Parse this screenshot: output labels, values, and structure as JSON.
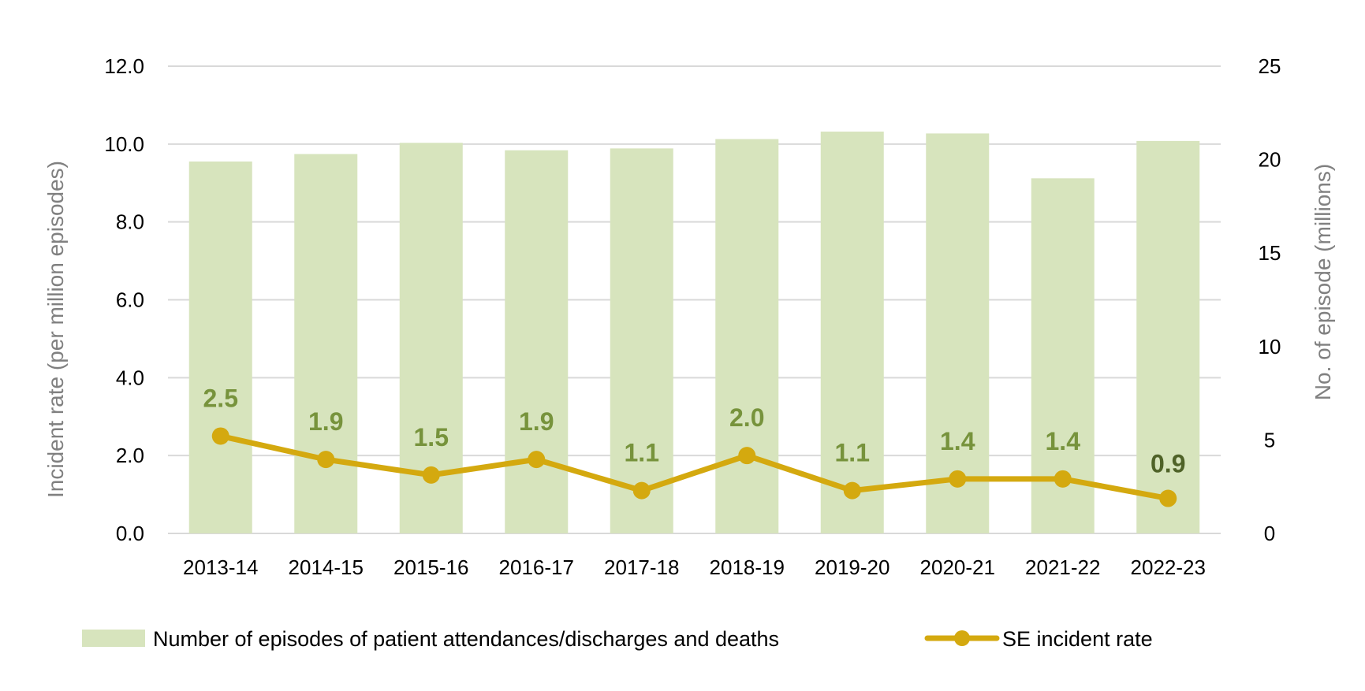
{
  "chart_data": {
    "type": "bar",
    "categories": [
      "2013-14",
      "2014-15",
      "2015-16",
      "2016-17",
      "2017-18",
      "2018-19",
      "2019-20",
      "2020-21",
      "2021-22",
      "2022-23"
    ],
    "series": [
      {
        "name": "Number of episodes of patient attendances/discharges and deaths",
        "type": "bar",
        "axis": "right",
        "values": [
          19.9,
          20.3,
          20.9,
          20.5,
          20.6,
          21.1,
          21.5,
          21.4,
          19.0,
          21.0
        ]
      },
      {
        "name": "SE incident rate",
        "type": "line",
        "axis": "left",
        "values": [
          2.5,
          1.9,
          1.5,
          1.9,
          1.1,
          2.0,
          1.1,
          1.4,
          1.4,
          0.9
        ],
        "labels": [
          "2.5",
          "1.9",
          "1.5",
          "1.9",
          "1.1",
          "2.0",
          "1.1",
          "1.4",
          "1.4",
          "0.9"
        ]
      }
    ],
    "ylabel": "Incident rate (per million episodes)",
    "ylabel_right": "No. of episode (millions)",
    "ylim": [
      0,
      12
    ],
    "ylim_right": [
      0,
      25
    ],
    "yticks": [
      "0.0",
      "2.0",
      "4.0",
      "6.0",
      "8.0",
      "10.0",
      "12.0"
    ],
    "yticks_right": [
      "0",
      "5",
      "10",
      "15",
      "20",
      "25"
    ],
    "grid": true,
    "legend_position": "bottom",
    "colors": {
      "bar": "#d7e4bd",
      "line": "#d4a90f",
      "label": "#77933c",
      "label_emphasis": "#4f6228",
      "grid": "#d9d9d9"
    }
  }
}
